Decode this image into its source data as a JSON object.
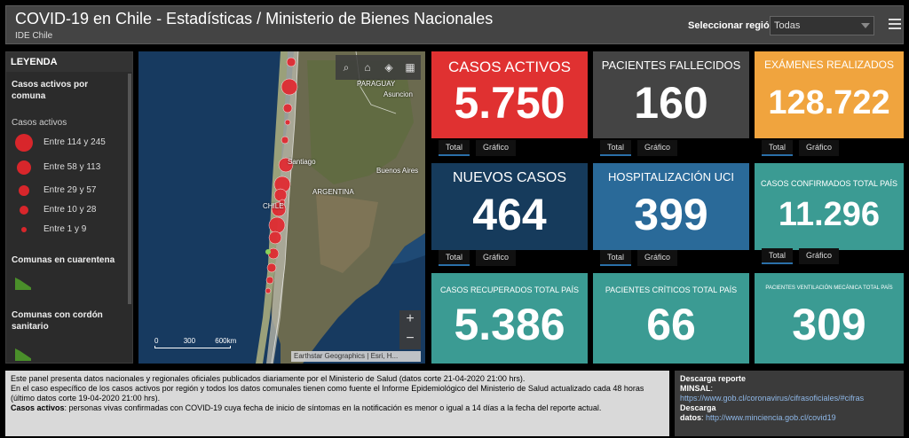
{
  "header": {
    "title": "COVID-19 en Chile - Estadísticas / Ministerio de Bienes Nacionales",
    "subtitle": "IDE Chile",
    "region_label": "Seleccionar región:",
    "region_value": "Todas",
    "menu_icon": "hamburger-icon"
  },
  "legend": {
    "heading": "LEYENDA",
    "section1_title": "Casos activos por comuna",
    "section1_sub": "Casos activos",
    "classes": [
      {
        "label": "Entre 114 y 245"
      },
      {
        "label": "Entre 58 y 113"
      },
      {
        "label": "Entre 29 y 57"
      },
      {
        "label": "Entre 10 y 28"
      },
      {
        "label": "Entre 1 y 9"
      }
    ],
    "section2_title": "Comunas en cuarentena",
    "section3_title": "Comunas con cordón sanitario",
    "dot_color": "#d8262b",
    "poly_color": "#4a8f2a"
  },
  "map": {
    "places": {
      "paraguay": "PARAGUAY",
      "asuncion": "Asuncion",
      "santiago": "Santiago",
      "buenos_aires": "Buenos Aires",
      "argentina": "ARGENTINA",
      "chile": "CHILE"
    },
    "scale": {
      "s0": "0",
      "s1": "300",
      "s2": "600km"
    },
    "attribution": "Earthstar Geographics | Esri, H...",
    "zoom_in": "+",
    "zoom_out": "−",
    "tools": [
      "search-icon",
      "home-icon",
      "layers-icon",
      "basemap-gallery-icon"
    ]
  },
  "cards": [
    {
      "title": "CASOS ACTIVOS",
      "value": "5.750",
      "color": "#e03131",
      "tab1": "Total",
      "tab2": "Gráfico"
    },
    {
      "title": "PACIENTES FALLECIDOS",
      "value": "160",
      "color": "#444444",
      "tab1": "Total",
      "tab2": "Gráfico"
    },
    {
      "title": "EXÁMENES REALIZADOS",
      "value": "128.722",
      "color": "#f0a43e",
      "tab1": "Total",
      "tab2": "Gráfico"
    },
    {
      "title": "NUEVOS CASOS",
      "value": "464",
      "color": "#163b5c",
      "tab1": "Total",
      "tab2": "Gráfico"
    },
    {
      "title": "HOSPITALIZACIÓN UCI",
      "value": "399",
      "color": "#2a6a99",
      "tab1": "Total",
      "tab2": "Gráfico"
    },
    {
      "title": "CASOS CONFIRMADOS TOTAL PAÍS",
      "value": "11.296",
      "color": "#3b9b93",
      "tab1": "Total",
      "tab2": "Gráfico"
    },
    {
      "title": "CASOS RECUPERADOS TOTAL PAÍS",
      "value": "5.386",
      "color": "#3b9b93"
    },
    {
      "title": "PACIENTES CRÍTICOS TOTAL PAÍS",
      "value": "66",
      "color": "#3b9b93"
    },
    {
      "title": "PACIENTES VENTILACIÓN MECÁNICA TOTAL PAÍS",
      "value": "309",
      "color": "#3b9b93"
    }
  ],
  "info": {
    "p1": "Este panel presenta datos nacionales y regionales oficiales publicados diariamente por el Ministerio de Salud (datos corte 21-04-2020 21:00 hrs).",
    "p2": "En el caso específico de los casos activos por región y todos los datos comunales tienen como fuente el Informe Epidemiológico del Ministerio de Salud actualizado cada 48 horas (último datos corte 19-04-2020 21:00 hrs).",
    "p3_bold": "Casos activos",
    "p3_rest": ": personas vivas confirmadas con COVID-19 cuya fecha de inicio de síntomas en la notificación es menor o igual a 14 días a la fecha del reporte actual."
  },
  "links": {
    "title1": "Descarga reporte",
    "label1": "MINSAL",
    "url1": "https://www.gob.cl/coronavirus/cifrasoficiales/#cifras",
    "title2": "Descarga",
    "label2": "datos",
    "url2": "http://www.minciencia.gob.cl/covid19"
  }
}
